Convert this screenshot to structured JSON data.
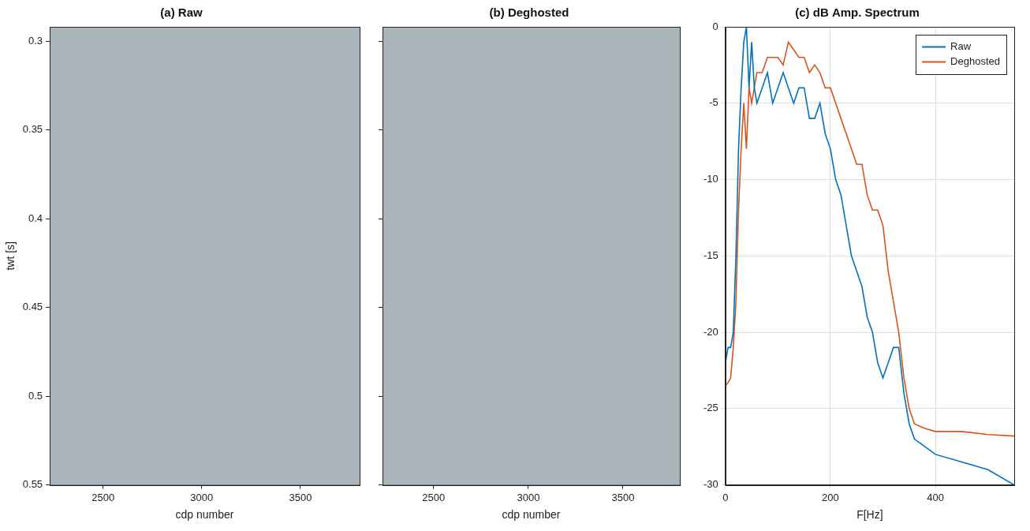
{
  "chart_data": [
    {
      "type": "image",
      "title": "(a) Raw",
      "x_label": "cdp number",
      "y_label": "twt [s]",
      "xlim": [
        2230,
        3800
      ],
      "xticks": [
        2500,
        3000,
        3500
      ],
      "ylim": [
        0.55,
        0.292
      ],
      "yticks": [
        0.3,
        0.35,
        0.4,
        0.45,
        0.5,
        0.55
      ],
      "color": "#aab5ba",
      "grid": false,
      "tick_labels": true
    },
    {
      "type": "image",
      "title": "(b) Deghosted",
      "x_label": "cdp number",
      "xlim": [
        2230,
        3800
      ],
      "xticks": [
        2500,
        3000,
        3500
      ],
      "ylim": [
        0.55,
        0.292
      ],
      "yticks": [
        0.3,
        0.35,
        0.4,
        0.45,
        0.5,
        0.55
      ],
      "color": "#aab5ba",
      "grid": false,
      "tick_labels": "x"
    },
    {
      "type": "line",
      "title": "(c) dB Amp. Spectrum",
      "x_label": "F[Hz]",
      "x": [
        0,
        5,
        10,
        15,
        20,
        25,
        30,
        35,
        40,
        45,
        50,
        55,
        60,
        70,
        80,
        90,
        100,
        110,
        120,
        130,
        140,
        150,
        160,
        170,
        180,
        190,
        200,
        210,
        220,
        230,
        240,
        250,
        260,
        270,
        280,
        290,
        300,
        310,
        320,
        330,
        340,
        350,
        360,
        380,
        400,
        450,
        500,
        550
      ],
      "series": [
        {
          "name": "Raw",
          "color": "#0072bd",
          "values": [
            -22,
            -21,
            -21,
            -20,
            -15,
            -8,
            -4,
            -1,
            0,
            -4,
            -1,
            -4,
            -5,
            -4,
            -3,
            -5,
            -4,
            -3,
            -4,
            -5,
            -4,
            -4,
            -6,
            -6,
            -5,
            -7,
            -8,
            -10,
            -11,
            -13,
            -15,
            -16,
            -17,
            -19,
            -20,
            -22,
            -23,
            -22,
            -21,
            -21,
            -24,
            -26,
            -27,
            -27.5,
            -28,
            -28.5,
            -29,
            -30
          ]
        },
        {
          "name": "Deghosted",
          "color": "#d95319",
          "values": [
            -23.5,
            -23.3,
            -23,
            -21,
            -18,
            -12,
            -8,
            -5,
            -8,
            -4,
            -5,
            -4,
            -3,
            -3,
            -2,
            -2,
            -2,
            -2.5,
            -1,
            -1.5,
            -2,
            -2,
            -3,
            -2.5,
            -3,
            -4,
            -4,
            -5,
            -6,
            -7,
            -8,
            -9,
            -9,
            -11,
            -12,
            -12,
            -13,
            -16,
            -18,
            -20,
            -23,
            -25,
            -26,
            -26.3,
            -26.5,
            -26.5,
            -26.7,
            -26.8
          ]
        }
      ],
      "xlim": [
        0,
        550
      ],
      "xticks": [
        0,
        200,
        400
      ],
      "ylim": [
        -30,
        0
      ],
      "yticks": [
        -30,
        -25,
        -20,
        -15,
        -10,
        -5,
        0
      ],
      "grid": true,
      "legend": "upper right",
      "tick_labels": true
    }
  ]
}
